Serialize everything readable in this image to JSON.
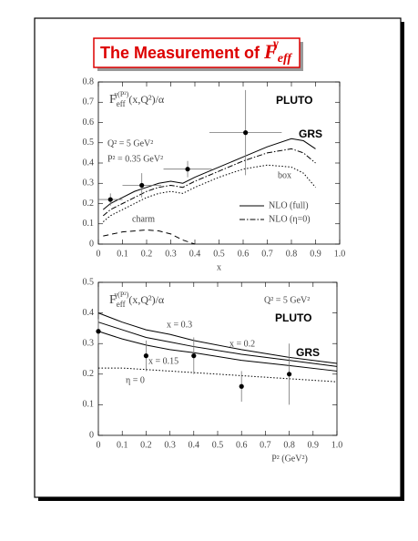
{
  "slide_title": {
    "text": "The Measurement of ",
    "symbol": "F",
    "sub": "eff",
    "sup": "γ"
  },
  "chart_data": [
    {
      "type": "line",
      "ylabel": {
        "main": "F",
        "sub": "eff",
        "sup": "γ(P²)",
        "rest": "(x,Q²)/α"
      },
      "xlabel": "x",
      "xlim": [
        0,
        1
      ],
      "ylim": [
        0,
        0.8
      ],
      "xticks": [
        0,
        0.1,
        0.2,
        0.3,
        0.4,
        0.5,
        0.6,
        0.7,
        0.8,
        0.9,
        {
          "value": 1,
          "label": "1.0"
        }
      ],
      "yticks": [
        0,
        0.1,
        0.2,
        0.3,
        0.4,
        0.5,
        0.6,
        0.7,
        0.8
      ],
      "annotations": [
        "Q² = 5 GeV²",
        "P² = 0.35 GeV²",
        "PLUTO",
        "GRS"
      ],
      "series": [
        {
          "name": "NLO (full)",
          "color": "#000000",
          "style": "solid",
          "x": [
            0.02,
            0.05,
            0.1,
            0.15,
            0.2,
            0.25,
            0.3,
            0.35,
            0.4,
            0.5,
            0.6,
            0.7,
            0.8,
            0.85,
            0.9
          ],
          "values": [
            0.17,
            0.2,
            0.23,
            0.26,
            0.28,
            0.3,
            0.31,
            0.3,
            0.33,
            0.38,
            0.43,
            0.48,
            0.52,
            0.51,
            0.47
          ]
        },
        {
          "name": "NLO (η=0)",
          "color": "#000000",
          "style": "dashdot",
          "x": [
            0.02,
            0.05,
            0.1,
            0.15,
            0.2,
            0.25,
            0.3,
            0.35,
            0.4,
            0.5,
            0.6,
            0.7,
            0.8,
            0.85,
            0.9
          ],
          "values": [
            0.14,
            0.17,
            0.2,
            0.23,
            0.26,
            0.28,
            0.29,
            0.28,
            0.31,
            0.36,
            0.41,
            0.45,
            0.47,
            0.45,
            0.4
          ]
        },
        {
          "label": "box",
          "color": "#000000",
          "style": "dotted",
          "x": [
            0.02,
            0.05,
            0.1,
            0.15,
            0.2,
            0.25,
            0.3,
            0.35,
            0.4,
            0.5,
            0.6,
            0.7,
            0.8,
            0.85,
            0.9
          ],
          "values": [
            0.11,
            0.14,
            0.17,
            0.2,
            0.23,
            0.25,
            0.26,
            0.25,
            0.28,
            0.33,
            0.37,
            0.39,
            0.38,
            0.35,
            0.28
          ]
        },
        {
          "label": "charm",
          "color": "#000000",
          "style": "dashed",
          "x": [
            0.02,
            0.1,
            0.2,
            0.25,
            0.3,
            0.35,
            0.4
          ],
          "values": [
            0.04,
            0.06,
            0.07,
            0.065,
            0.05,
            0.02,
            0
          ]
        }
      ],
      "points": {
        "x": [
          0.05,
          0.18,
          0.37,
          0.61
        ],
        "y": [
          0.22,
          0.29,
          0.37,
          0.55
        ],
        "yerr": [
          0.03,
          0.06,
          0.04,
          0.21
        ],
        "xerr": [
          0.05,
          0.08,
          0.1,
          0.15
        ]
      }
    },
    {
      "type": "line",
      "ylabel": {
        "main": "F",
        "sub": "eff",
        "sup": "γ(P²)",
        "rest": "(x,Q²)/α"
      },
      "xlabel": "P² (GeV²)",
      "xlim": [
        0,
        1
      ],
      "ylim": [
        0,
        0.5
      ],
      "xticks": [
        0,
        0.1,
        0.2,
        0.3,
        0.4,
        0.5,
        0.6,
        0.7,
        0.8,
        0.9,
        {
          "value": 1,
          "label": "1.0"
        }
      ],
      "yticks": [
        0,
        0.1,
        0.2,
        0.3,
        0.4,
        0.5
      ],
      "annotations": [
        "Q² = 5 GeV²",
        "PLUTO",
        "GRS"
      ],
      "series": [
        {
          "label": "x = 0.3",
          "color": "#000000",
          "style": "solid",
          "x": [
            0,
            0.1,
            0.2,
            0.3,
            0.4,
            0.6,
            0.8,
            1
          ],
          "values": [
            0.4,
            0.37,
            0.345,
            0.33,
            0.31,
            0.28,
            0.255,
            0.235
          ]
        },
        {
          "label": "x = 0.2",
          "color": "#000000",
          "style": "solid",
          "x": [
            0,
            0.1,
            0.2,
            0.3,
            0.4,
            0.6,
            0.8,
            1
          ],
          "values": [
            0.37,
            0.345,
            0.32,
            0.305,
            0.29,
            0.265,
            0.245,
            0.225
          ]
        },
        {
          "label": "x = 0.15",
          "color": "#000000",
          "style": "solid",
          "x": [
            0,
            0.1,
            0.2,
            0.3,
            0.4,
            0.6,
            0.8,
            1
          ],
          "values": [
            0.34,
            0.315,
            0.295,
            0.28,
            0.27,
            0.245,
            0.228,
            0.21
          ]
        },
        {
          "label": "η = 0",
          "color": "#000000",
          "style": "dotted",
          "x": [
            0,
            0.1,
            0.2,
            0.3,
            0.4,
            0.6,
            0.8,
            1
          ],
          "values": [
            0.22,
            0.22,
            0.215,
            0.21,
            0.205,
            0.195,
            0.185,
            0.175
          ]
        }
      ],
      "points": {
        "x": [
          0,
          0.2,
          0.4,
          0.6,
          0.8
        ],
        "y": [
          0.34,
          0.26,
          0.26,
          0.16,
          0.2
        ],
        "yerr": [
          0.04,
          0.05,
          0.06,
          0.05,
          0.1
        ]
      }
    }
  ]
}
